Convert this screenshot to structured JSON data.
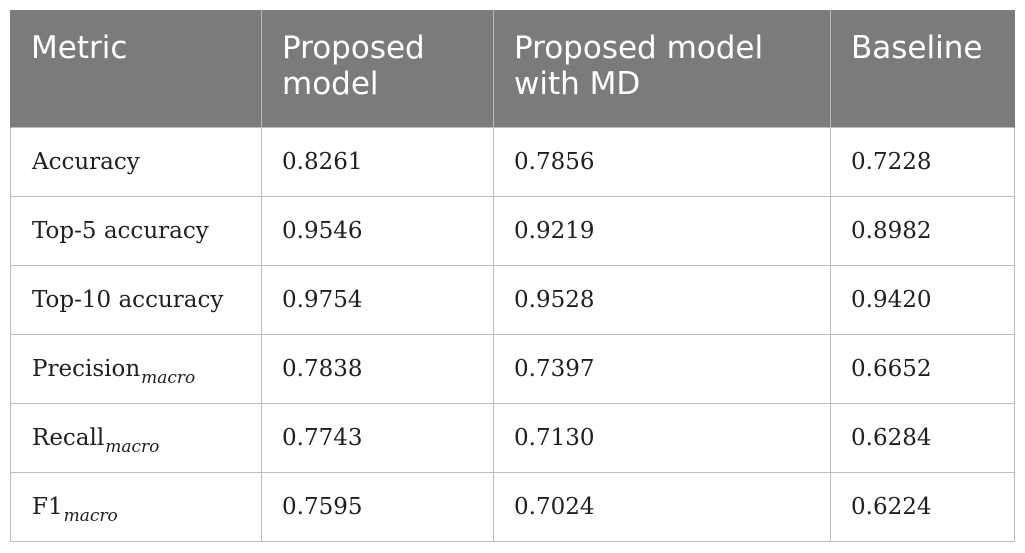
{
  "table": {
    "headers": [
      "Metric",
      "Proposed model",
      "Proposed model with MD",
      "Baseline"
    ],
    "rows": [
      {
        "metric": "Accuracy",
        "metric_sub": "",
        "values": [
          "0.8261",
          "0.7856",
          "0.7228"
        ]
      },
      {
        "metric": "Top-5 accuracy",
        "metric_sub": "",
        "values": [
          "0.9546",
          "0.9219",
          "0.8982"
        ]
      },
      {
        "metric": "Top-10 accuracy",
        "metric_sub": "",
        "values": [
          "0.9754",
          "0.9528",
          "0.9420"
        ]
      },
      {
        "metric": "Precision",
        "metric_sub": "macro",
        "values": [
          "0.7838",
          "0.7397",
          "0.6652"
        ]
      },
      {
        "metric": "Recall",
        "metric_sub": "macro",
        "values": [
          "0.7743",
          "0.7130",
          "0.6284"
        ]
      },
      {
        "metric": "F1",
        "metric_sub": "macro",
        "values": [
          "0.7595",
          "0.7024",
          "0.6224"
        ]
      }
    ]
  },
  "colors": {
    "header_bg": "#7a7c7b",
    "header_text": "#ffffff",
    "grid": "#bdbdbd"
  }
}
